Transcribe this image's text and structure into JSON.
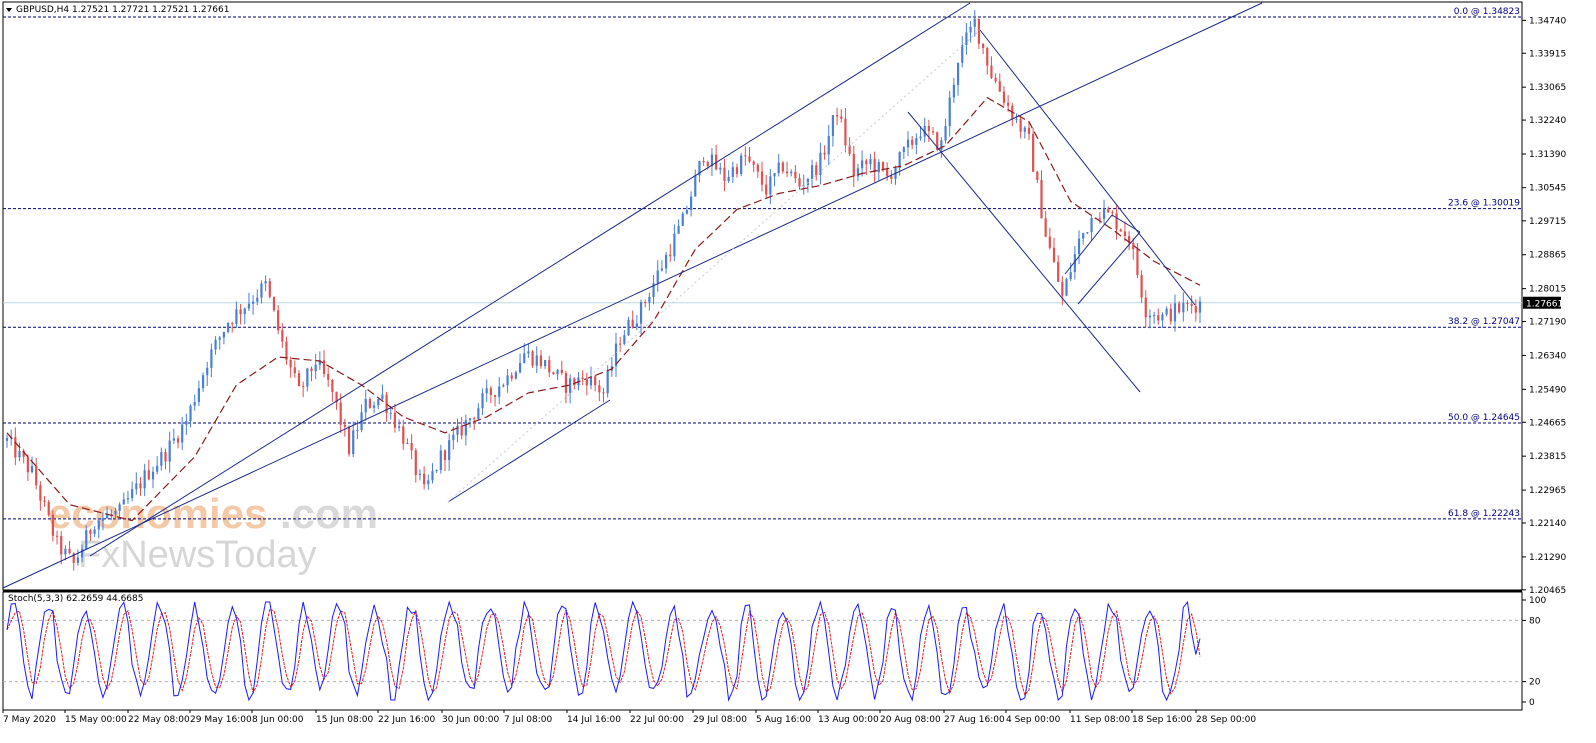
{
  "chart_data": [
    {
      "type": "candlestick",
      "symbol_header": "GBPUSD,H4  1.27521 1.27721 1.27521 1.27661",
      "current_price": "1.27661",
      "price_range": [
        1.2046,
        1.352
      ],
      "y_ticks": [
        "1.34740",
        "1.33915",
        "1.33065",
        "1.32240",
        "1.31390",
        "1.30545",
        "1.29715",
        "1.28865",
        "1.28015",
        "1.27190",
        "1.26340",
        "1.25490",
        "1.24665",
        "1.23815",
        "1.22965",
        "1.22140",
        "1.21290",
        "1.20465"
      ],
      "x_ticks": [
        "7 May 2020",
        "15 May 00:00",
        "22 May 08:00",
        "29 May 16:00",
        "8 Jun 00:00",
        "15 Jun 08:00",
        "22 Jun 16:00",
        "30 Jun 00:00",
        "7 Jul 08:00",
        "14 Jul 16:00",
        "22 Jul 00:00",
        "29 Jul 08:00",
        "5 Aug 16:00",
        "13 Aug 00:00",
        "20 Aug 08:00",
        "27 Aug 16:00",
        "4 Sep 00:00",
        "11 Sep 08:00",
        "18 Sep 16:00",
        "28 Sep 00:00"
      ],
      "fibonacci": [
        {
          "label": "0.0 @ 1.34823",
          "value": 1.34823
        },
        {
          "label": "23.6 @ 1.30019",
          "value": 1.30019
        },
        {
          "label": "38.2 @ 1.27047",
          "value": 1.27047
        },
        {
          "label": "50.0 @ 1.24645",
          "value": 1.24645
        },
        {
          "label": "61.8 @ 1.22243",
          "value": 1.22243
        }
      ],
      "anchors": [
        [
          0,
          1.242
        ],
        [
          6,
          1.234
        ],
        [
          12,
          1.216
        ],
        [
          16,
          1.211
        ],
        [
          21,
          1.222
        ],
        [
          27,
          1.224
        ],
        [
          33,
          1.233
        ],
        [
          38,
          1.239
        ],
        [
          43,
          1.247
        ],
        [
          48,
          1.262
        ],
        [
          53,
          1.272
        ],
        [
          58,
          1.277
        ],
        [
          62,
          1.281
        ],
        [
          66,
          1.266
        ],
        [
          70,
          1.254
        ],
        [
          74,
          1.262
        ],
        [
          78,
          1.254
        ],
        [
          82,
          1.24
        ],
        [
          86,
          1.251
        ],
        [
          90,
          1.253
        ],
        [
          95,
          1.243
        ],
        [
          100,
          1.229
        ],
        [
          104,
          1.238
        ],
        [
          109,
          1.245
        ],
        [
          114,
          1.252
        ],
        [
          120,
          1.258
        ],
        [
          124,
          1.264
        ],
        [
          128,
          1.262
        ],
        [
          134,
          1.256
        ],
        [
          139,
          1.258
        ],
        [
          143,
          1.254
        ],
        [
          147,
          1.268
        ],
        [
          152,
          1.275
        ],
        [
          157,
          1.286
        ],
        [
          162,
          1.297
        ],
        [
          167,
          1.314
        ],
        [
          172,
          1.308
        ],
        [
          177,
          1.313
        ],
        [
          182,
          1.305
        ],
        [
          186,
          1.311
        ],
        [
          190,
          1.306
        ],
        [
          195,
          1.312
        ],
        [
          199,
          1.325
        ],
        [
          203,
          1.309
        ],
        [
          207,
          1.312
        ],
        [
          211,
          1.308
        ],
        [
          215,
          1.314
        ],
        [
          219,
          1.32
        ],
        [
          224,
          1.316
        ],
        [
          228,
          1.338
        ],
        [
          232,
          1.347
        ],
        [
          236,
          1.334
        ],
        [
          241,
          1.324
        ],
        [
          245,
          1.317
        ],
        [
          249,
          1.294
        ],
        [
          253,
          1.278
        ],
        [
          257,
          1.292
        ],
        [
          261,
          1.3
        ],
        [
          265,
          1.298
        ],
        [
          269,
          1.293
        ],
        [
          273,
          1.275
        ],
        [
          277,
          1.273
        ],
        [
          281,
          1.275
        ],
        [
          284,
          1.276
        ],
        [
          286,
          1.2766
        ]
      ],
      "ma_anchors": [
        [
          0,
          1.244
        ],
        [
          15,
          1.226
        ],
        [
          30,
          1.222
        ],
        [
          45,
          1.238
        ],
        [
          55,
          1.256
        ],
        [
          65,
          1.263
        ],
        [
          75,
          1.262
        ],
        [
          85,
          1.256
        ],
        [
          95,
          1.248
        ],
        [
          105,
          1.244
        ],
        [
          115,
          1.248
        ],
        [
          125,
          1.254
        ],
        [
          135,
          1.256
        ],
        [
          145,
          1.26
        ],
        [
          155,
          1.272
        ],
        [
          165,
          1.29
        ],
        [
          175,
          1.3
        ],
        [
          185,
          1.304
        ],
        [
          195,
          1.306
        ],
        [
          205,
          1.309
        ],
        [
          215,
          1.311
        ],
        [
          225,
          1.316
        ],
        [
          235,
          1.328
        ],
        [
          245,
          1.322
        ],
        [
          255,
          1.302
        ],
        [
          265,
          1.295
        ],
        [
          275,
          1.287
        ],
        [
          286,
          1.281
        ]
      ]
    },
    {
      "type": "line",
      "title": "Stoch(5,3,3) 62.2659 44.6685",
      "y_ticks": [
        "100",
        "80",
        "20",
        "0"
      ],
      "ylim": [
        0,
        100
      ],
      "levels": [
        80,
        20
      ],
      "series": [
        {
          "color": "#1a1aff"
        },
        {
          "color": "#e02020"
        }
      ]
    }
  ],
  "watermark": {
    "brand": "economies",
    "domain": ".com",
    "sub": "FxNewsToday"
  },
  "colors": {
    "up": "#4a7fd6",
    "down": "#e05050",
    "channel": "#1c2a8c",
    "fib": "#000080",
    "ma": "#8b1a1a",
    "price_line": "#b8d8e8"
  }
}
